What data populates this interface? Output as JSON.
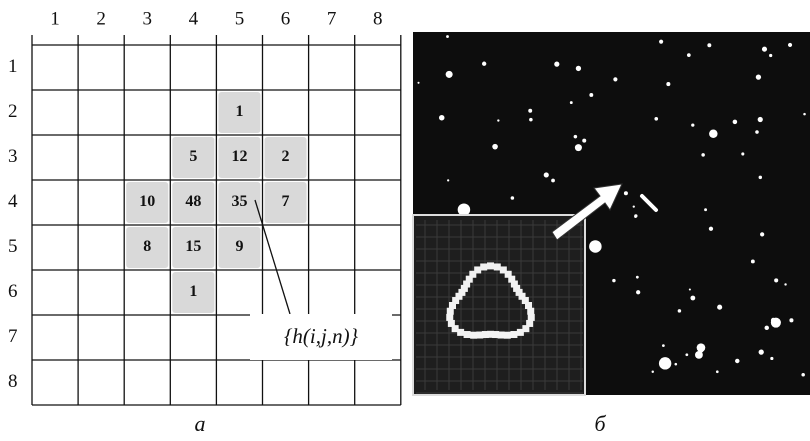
{
  "grid": {
    "column_labels": [
      1,
      2,
      3,
      4,
      5,
      6,
      7,
      8
    ],
    "row_labels": [
      1,
      2,
      3,
      4,
      5,
      6,
      7,
      8
    ],
    "rows": [
      [
        null,
        null,
        null,
        null,
        null,
        null,
        null,
        null
      ],
      [
        null,
        null,
        null,
        null,
        1,
        null,
        null,
        null
      ],
      [
        null,
        null,
        null,
        5,
        12,
        2,
        null,
        null
      ],
      [
        null,
        null,
        10,
        48,
        35,
        7,
        null,
        null
      ],
      [
        null,
        null,
        8,
        15,
        9,
        null,
        null,
        null
      ],
      [
        null,
        null,
        null,
        1,
        null,
        null,
        null,
        null
      ],
      [
        null,
        null,
        null,
        null,
        null,
        null,
        null,
        null
      ],
      [
        null,
        null,
        null,
        null,
        null,
        null,
        null,
        null
      ]
    ],
    "annotation": "{h(i,j,n)}"
  },
  "captions": [
    "а",
    "б"
  ]
}
